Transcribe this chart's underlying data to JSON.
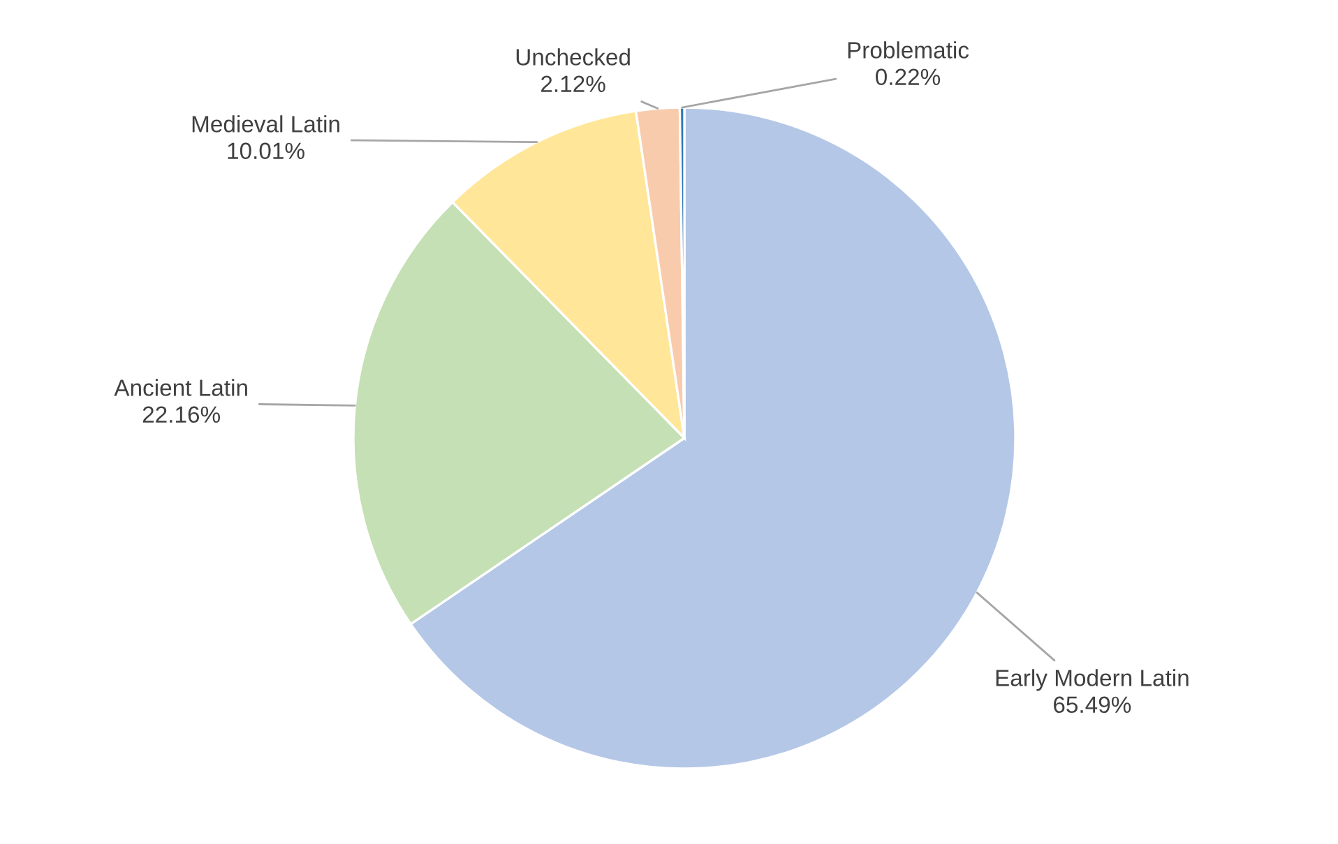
{
  "chart_data": {
    "type": "pie",
    "categories": [
      "Early Modern Latin",
      "Ancient Latin",
      "Medieval Latin",
      "Unchecked",
      "Problematic"
    ],
    "values": [
      65.49,
      22.16,
      10.01,
      2.12,
      0.22
    ],
    "colors": [
      "#b4c7e7",
      "#c5e0b4",
      "#ffe699",
      "#f8cbad",
      "#2e75b6"
    ],
    "value_labels": [
      "65.49%",
      "22.16%",
      "10.01%",
      "2.12%",
      "0.22%"
    ]
  }
}
